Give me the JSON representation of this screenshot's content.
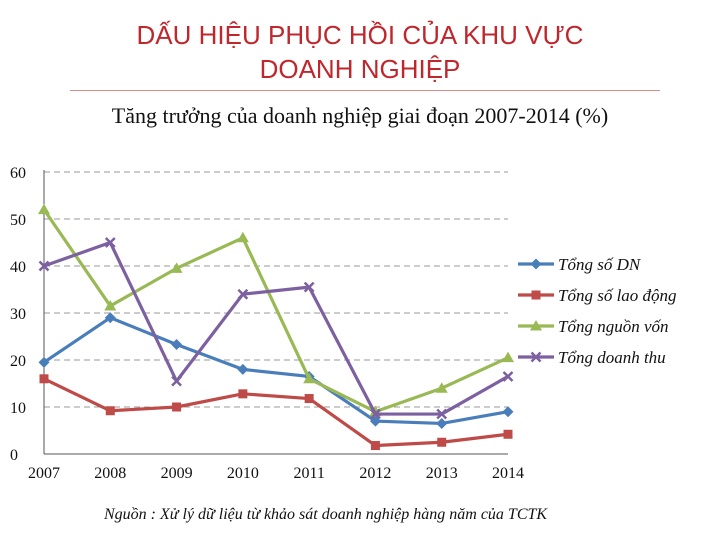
{
  "page": {
    "title_line1": "DẤU HIỆU PHỤC HỒI CỦA KHU VỰC",
    "title_line2": "DOANH NGHIỆP",
    "source": "Nguồn : Xử lý dữ liệu từ khảo sát doanh nghiệp hàng năm của TCTK"
  },
  "chart_data": {
    "type": "line",
    "title": "Tăng trưởng của doanh nghiệp giai đoạn 2007-2014 (%)",
    "xlabel": "",
    "ylabel": "",
    "categories": [
      "2007",
      "2008",
      "2009",
      "2010",
      "2011",
      "2012",
      "2013",
      "2014"
    ],
    "ylim": [
      0,
      60
    ],
    "yticks": [
      0,
      10,
      20,
      30,
      40,
      50,
      60
    ],
    "grid": true,
    "legend_position": "right",
    "series": [
      {
        "name": "Tổng số DN",
        "color": "#4a7ebb",
        "marker": "diamond",
        "values": [
          19.5,
          29,
          23.3,
          18,
          16.5,
          7,
          6.5,
          9
        ]
      },
      {
        "name": "Tổng số lao động",
        "color": "#be4b48",
        "marker": "square",
        "values": [
          16,
          9.2,
          10,
          12.8,
          11.8,
          1.8,
          2.5,
          4.2
        ]
      },
      {
        "name": "Tổng nguồn vốn",
        "color": "#98b954",
        "marker": "triangle",
        "values": [
          52,
          31.5,
          39.5,
          46,
          16,
          9,
          14,
          20.5
        ]
      },
      {
        "name": "Tổng doanh thu",
        "color": "#7d60a0",
        "marker": "x",
        "values": [
          40,
          45,
          15.5,
          34,
          35.5,
          8.5,
          8.5,
          16.5
        ]
      }
    ]
  }
}
